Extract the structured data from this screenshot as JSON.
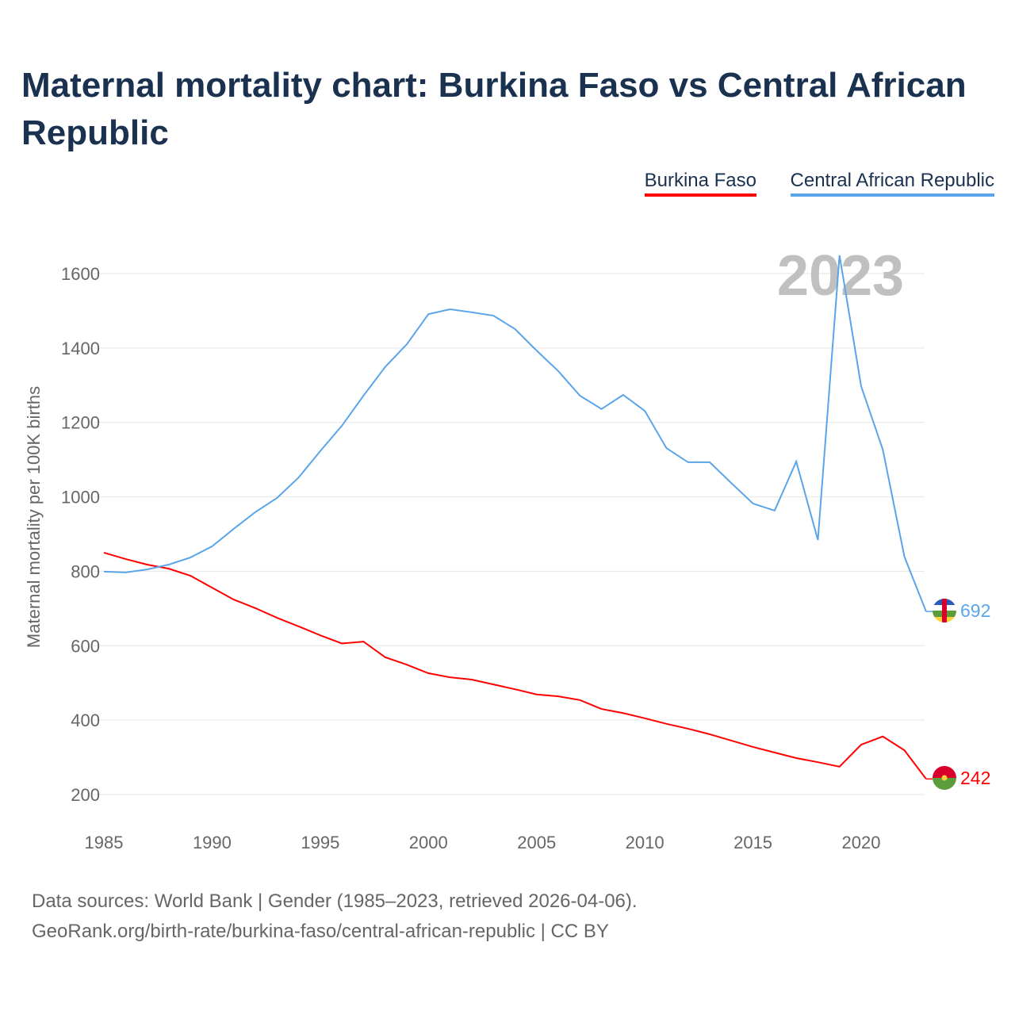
{
  "chart_data": {
    "type": "line",
    "title": "Maternal mortality chart: Burkina Faso vs Central African Republic",
    "ylabel": "Maternal mortality per 100K births",
    "xlabel": "",
    "xlim": [
      1985,
      2023
    ],
    "ylim": [
      200,
      1650
    ],
    "xticks": [
      "1985",
      "1990",
      "1995",
      "2000",
      "2005",
      "2010",
      "2015",
      "2020"
    ],
    "yticks": [
      "200",
      "400",
      "600",
      "800",
      "1000",
      "1200",
      "1400",
      "1600"
    ],
    "grid": true,
    "legend_position": "top-right",
    "year_watermark": "2023",
    "x": [
      1985,
      1986,
      1987,
      1988,
      1989,
      1990,
      1991,
      1992,
      1993,
      1994,
      1995,
      1996,
      1997,
      1998,
      1999,
      2000,
      2001,
      2002,
      2003,
      2004,
      2005,
      2006,
      2007,
      2008,
      2009,
      2010,
      2011,
      2012,
      2013,
      2014,
      2015,
      2016,
      2017,
      2018,
      2019,
      2020,
      2021,
      2022,
      2023
    ],
    "series": [
      {
        "name": "Burkina Faso",
        "color": "#ff0000",
        "end_label": "242",
        "values": [
          850,
          833,
          818,
          807,
          788,
          756,
          724,
          701,
          675,
          652,
          628,
          606,
          611,
          569,
          549,
          526,
          515,
          509,
          496,
          483,
          469,
          464,
          454,
          430,
          419,
          405,
          390,
          377,
          362,
          345,
          328,
          313,
          298,
          287,
          275,
          334,
          356,
          319,
          242
        ]
      },
      {
        "name": "Central African Republic",
        "color": "#5aa5ea",
        "end_label": "692",
        "values": [
          799,
          797,
          805,
          818,
          837,
          867,
          914,
          959,
          997,
          1052,
          1123,
          1191,
          1272,
          1349,
          1410,
          1491,
          1504,
          1496,
          1487,
          1451,
          1393,
          1338,
          1272,
          1236,
          1274,
          1231,
          1131,
          1093,
          1093,
          1037,
          982,
          963,
          1095,
          884,
          1649,
          1297,
          1127,
          839,
          692
        ]
      }
    ]
  },
  "source_line1": "Data sources: World Bank | Gender (1985–2023, retrieved 2026-04-06).",
  "source_line2": "GeoRank.org/birth-rate/burkina-faso/central-african-republic | CC BY"
}
